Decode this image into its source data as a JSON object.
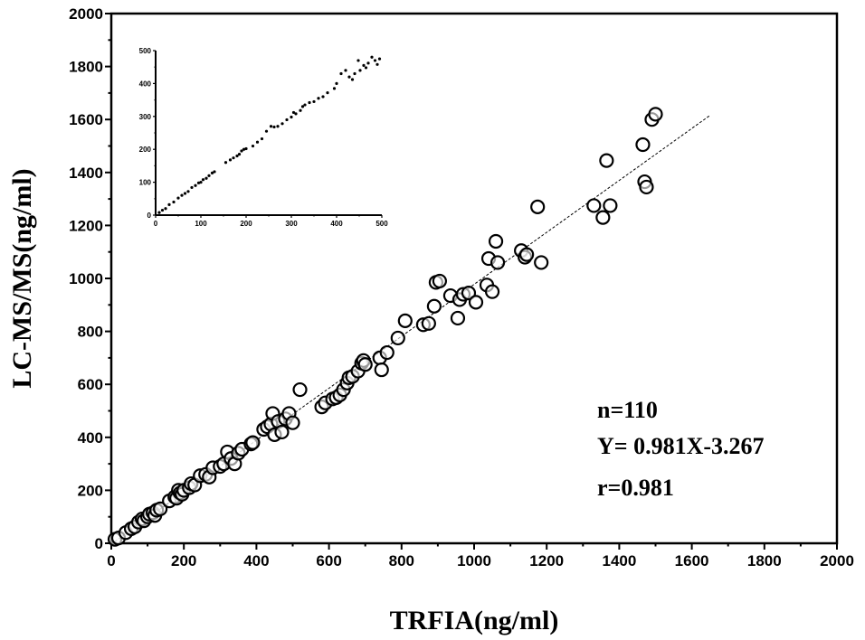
{
  "chart_data": [
    {
      "type": "scatter",
      "xlabel": "TRFIA(ng/ml)",
      "ylabel": "LC-MS/MS(ng/ml)",
      "xlim": [
        0,
        2000
      ],
      "ylim": [
        0,
        2000
      ],
      "xticks": [
        "0",
        "200",
        "400",
        "600",
        "800",
        "1000",
        "1200",
        "1400",
        "1600",
        "1800",
        "2000"
      ],
      "yticks": [
        "0",
        "200",
        "400",
        "600",
        "800",
        "1000",
        "1200",
        "1400",
        "1600",
        "1800",
        "2000"
      ],
      "annotations": [
        "n=110",
        "Y= 0.981X-3.267",
        "r=0.981"
      ],
      "fit_line": {
        "slope": 0.981,
        "intercept": -3.267,
        "x_range": [
          0,
          1650
        ]
      },
      "marker": "open-circle",
      "points": [
        [
          10,
          15
        ],
        [
          20,
          20
        ],
        [
          40,
          40
        ],
        [
          55,
          55
        ],
        [
          65,
          62
        ],
        [
          75,
          80
        ],
        [
          85,
          92
        ],
        [
          90,
          85
        ],
        [
          100,
          100
        ],
        [
          105,
          110
        ],
        [
          115,
          115
        ],
        [
          120,
          105
        ],
        [
          125,
          125
        ],
        [
          135,
          130
        ],
        [
          160,
          160
        ],
        [
          175,
          175
        ],
        [
          180,
          170
        ],
        [
          185,
          200
        ],
        [
          190,
          190
        ],
        [
          195,
          185
        ],
        [
          200,
          200
        ],
        [
          215,
          210
        ],
        [
          220,
          225
        ],
        [
          230,
          220
        ],
        [
          245,
          255
        ],
        [
          260,
          260
        ],
        [
          270,
          250
        ],
        [
          280,
          285
        ],
        [
          300,
          290
        ],
        [
          310,
          300
        ],
        [
          320,
          345
        ],
        [
          330,
          320
        ],
        [
          340,
          300
        ],
        [
          350,
          340
        ],
        [
          360,
          355
        ],
        [
          385,
          375
        ],
        [
          390,
          380
        ],
        [
          420,
          430
        ],
        [
          430,
          440
        ],
        [
          440,
          450
        ],
        [
          445,
          490
        ],
        [
          450,
          410
        ],
        [
          460,
          460
        ],
        [
          470,
          420
        ],
        [
          480,
          470
        ],
        [
          490,
          490
        ],
        [
          500,
          455
        ],
        [
          520,
          580
        ],
        [
          580,
          515
        ],
        [
          590,
          530
        ],
        [
          610,
          545
        ],
        [
          620,
          550
        ],
        [
          630,
          560
        ],
        [
          640,
          580
        ],
        [
          650,
          605
        ],
        [
          655,
          625
        ],
        [
          665,
          630
        ],
        [
          680,
          650
        ],
        [
          690,
          680
        ],
        [
          695,
          690
        ],
        [
          700,
          675
        ],
        [
          740,
          700
        ],
        [
          745,
          655
        ],
        [
          760,
          720
        ],
        [
          790,
          775
        ],
        [
          810,
          840
        ],
        [
          860,
          825
        ],
        [
          875,
          830
        ],
        [
          890,
          895
        ],
        [
          895,
          985
        ],
        [
          905,
          990
        ],
        [
          935,
          935
        ],
        [
          955,
          850
        ],
        [
          960,
          920
        ],
        [
          970,
          940
        ],
        [
          985,
          945
        ],
        [
          1005,
          910
        ],
        [
          1035,
          975
        ],
        [
          1040,
          1075
        ],
        [
          1050,
          950
        ],
        [
          1060,
          1140
        ],
        [
          1065,
          1060
        ],
        [
          1130,
          1105
        ],
        [
          1140,
          1080
        ],
        [
          1145,
          1090
        ],
        [
          1175,
          1270
        ],
        [
          1185,
          1060
        ],
        [
          1330,
          1275
        ],
        [
          1355,
          1230
        ],
        [
          1365,
          1445
        ],
        [
          1375,
          1275
        ],
        [
          1465,
          1505
        ],
        [
          1470,
          1365
        ],
        [
          1475,
          1345
        ],
        [
          1490,
          1600
        ],
        [
          1500,
          1620
        ]
      ]
    },
    {
      "type": "scatter",
      "title": "inset",
      "xlim": [
        0,
        500
      ],
      "ylim": [
        0,
        500
      ],
      "xticks": [
        "0",
        "100",
        "200",
        "300",
        "400",
        "500"
      ],
      "yticks": [
        "0",
        "100",
        "200",
        "300",
        "400",
        "500"
      ],
      "marker": "dot",
      "points": [
        [
          8,
          8
        ],
        [
          15,
          15
        ],
        [
          22,
          20
        ],
        [
          30,
          32
        ],
        [
          40,
          40
        ],
        [
          50,
          52
        ],
        [
          58,
          60
        ],
        [
          65,
          66
        ],
        [
          72,
          72
        ],
        [
          80,
          84
        ],
        [
          88,
          90
        ],
        [
          95,
          98
        ],
        [
          100,
          100
        ],
        [
          105,
          108
        ],
        [
          112,
          112
        ],
        [
          118,
          120
        ],
        [
          125,
          128
        ],
        [
          130,
          132
        ],
        [
          155,
          160
        ],
        [
          165,
          168
        ],
        [
          172,
          174
        ],
        [
          180,
          180
        ],
        [
          185,
          185
        ],
        [
          190,
          195
        ],
        [
          195,
          200
        ],
        [
          200,
          202
        ],
        [
          215,
          210
        ],
        [
          225,
          222
        ],
        [
          235,
          232
        ],
        [
          245,
          255
        ],
        [
          255,
          270
        ],
        [
          262,
          268
        ],
        [
          270,
          270
        ],
        [
          280,
          278
        ],
        [
          290,
          290
        ],
        [
          300,
          298
        ],
        [
          305,
          312
        ],
        [
          310,
          308
        ],
        [
          320,
          318
        ],
        [
          325,
          330
        ],
        [
          330,
          335
        ],
        [
          340,
          342
        ],
        [
          350,
          345
        ],
        [
          360,
          355
        ],
        [
          370,
          360
        ],
        [
          380,
          372
        ],
        [
          395,
          385
        ],
        [
          400,
          400
        ],
        [
          410,
          430
        ],
        [
          420,
          440
        ],
        [
          428,
          420
        ],
        [
          435,
          412
        ],
        [
          440,
          430
        ],
        [
          448,
          470
        ],
        [
          452,
          440
        ],
        [
          460,
          455
        ],
        [
          465,
          448
        ],
        [
          470,
          462
        ],
        [
          478,
          480
        ],
        [
          485,
          470
        ],
        [
          490,
          458
        ],
        [
          495,
          475
        ]
      ]
    }
  ]
}
